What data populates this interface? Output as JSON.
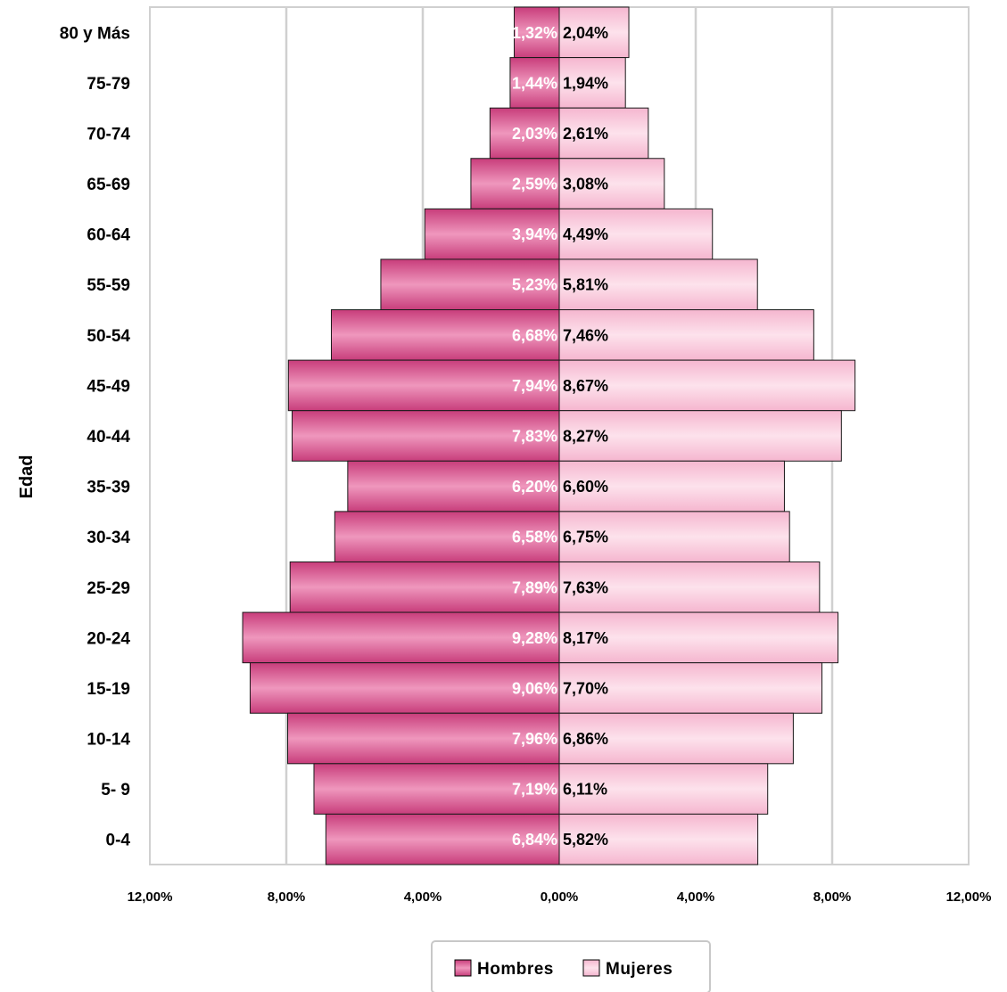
{
  "chart_data": {
    "type": "bar",
    "orientation": "horizontal",
    "subtype": "population-pyramid",
    "ylabel": "Edad",
    "xlabel": "",
    "categories": [
      "80 y Más",
      "75-79",
      "70-74",
      "65-69",
      "60-64",
      "55-59",
      "50-54",
      "45-49",
      "40-44",
      "35-39",
      "30-34",
      "25-29",
      "20-24",
      "15-19",
      "10-14",
      "5- 9",
      "0-4"
    ],
    "series": [
      {
        "name": "Hombres",
        "side": "left",
        "color": "#d64b8a",
        "values": [
          1.32,
          1.44,
          2.03,
          2.59,
          3.94,
          5.23,
          6.68,
          7.94,
          7.83,
          6.2,
          6.58,
          7.89,
          9.28,
          9.06,
          7.96,
          7.19,
          6.84
        ],
        "labels": [
          "1,32%",
          "1,44%",
          "2,03%",
          "2,59%",
          "3,94%",
          "5,23%",
          "6,68%",
          "7,94%",
          "7,83%",
          "6,20%",
          "6,58%",
          "7,89%",
          "9,28%",
          "9,06%",
          "7,96%",
          "7,19%",
          "6,84%"
        ]
      },
      {
        "name": "Mujeres",
        "side": "right",
        "color": "#f6bdd3",
        "values": [
          2.04,
          1.94,
          2.61,
          3.08,
          4.49,
          5.81,
          7.46,
          8.67,
          8.27,
          6.6,
          6.75,
          7.63,
          8.17,
          7.7,
          6.86,
          6.11,
          5.82
        ],
        "labels": [
          "2,04%",
          "1,94%",
          "2,61%",
          "3,08%",
          "4,49%",
          "5,81%",
          "7,46%",
          "8,67%",
          "8,27%",
          "6,60%",
          "6,75%",
          "7,63%",
          "8,17%",
          "7,70%",
          "6,86%",
          "6,11%",
          "5,82%"
        ]
      }
    ],
    "xlim": [
      -12,
      12
    ],
    "xticks": [
      -12,
      -8,
      -4,
      0,
      4,
      8,
      12
    ],
    "xtick_labels": [
      "12,00%",
      "8,00%",
      "4,00%",
      "0,00%",
      "4,00%",
      "8,00%",
      "12,00%"
    ],
    "grid": "vertical",
    "legend_position": "bottom"
  }
}
